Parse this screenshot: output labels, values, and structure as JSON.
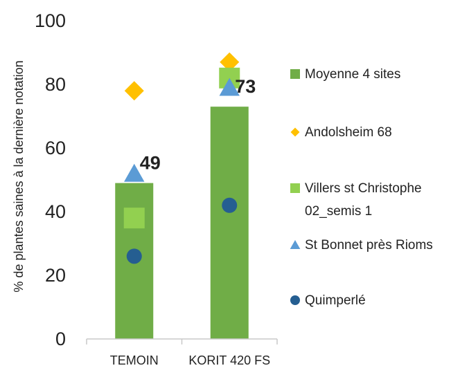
{
  "chart_data": {
    "type": "bar",
    "title": "",
    "xlabel": "",
    "ylabel": "% de plantes saines à la dernière notation",
    "ylim": [
      0,
      100
    ],
    "yticks": [
      0,
      20,
      40,
      60,
      80,
      100
    ],
    "grid": false,
    "legend": "right",
    "categories": [
      "TEMOIN",
      "KORIT 420 FS"
    ],
    "series": [
      {
        "name": "Moyenne 4 sites",
        "kind": "bar",
        "marker": "square",
        "color": "#70ad47",
        "values": [
          49,
          73
        ],
        "data_labels": [
          "49",
          "73"
        ]
      },
      {
        "name": "Andolsheim 68",
        "kind": "marker",
        "marker": "diamond",
        "color": "#ffc000",
        "values": [
          78,
          87
        ]
      },
      {
        "name": "Villers st Christophe 02_semis 1",
        "legend_lines": [
          "Villers st Christophe",
          "02_semis 1"
        ],
        "kind": "marker",
        "marker": "square",
        "color": "#92d050",
        "values": [
          38,
          82
        ]
      },
      {
        "name": "St Bonnet près Rioms",
        "kind": "marker",
        "marker": "triangle",
        "color": "#5b9bd5",
        "values": [
          52,
          79
        ]
      },
      {
        "name": "Quimperlé",
        "kind": "marker",
        "marker": "circle",
        "color": "#255e91",
        "values": [
          26,
          42
        ]
      }
    ]
  }
}
